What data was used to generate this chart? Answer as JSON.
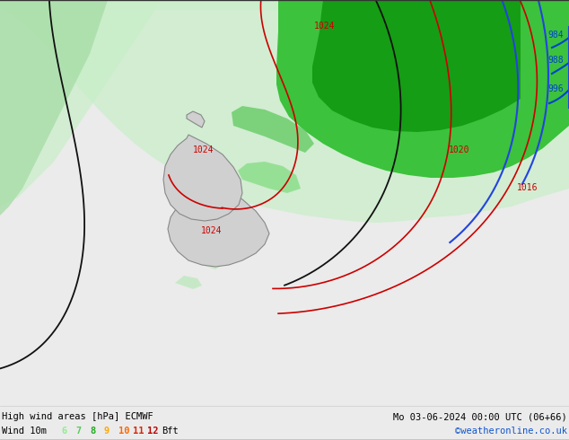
{
  "title_left": "High wind areas [hPa] ECMWF",
  "title_right": "Mo 03-06-2024 00:00 UTC (06+66)",
  "subtitle_left": "Wind 10m",
  "subtitle_right": "©weatheronline.co.uk",
  "bft_labels": [
    "6",
    "7",
    "8",
    "9",
    "10",
    "11",
    "12"
  ],
  "bft_colors": [
    "#90ee90",
    "#66cc66",
    "#33aa33",
    "#ffaa00",
    "#ff6600",
    "#ff2200",
    "#cc0000"
  ],
  "bft_light_colors": [
    "#c8f0c8",
    "#a8e0a8",
    "#88d088",
    "#ffcc88",
    "#ff9966",
    "#ff6644",
    "#ee2222"
  ],
  "background_color": "#e8e8e8",
  "fig_width": 6.34,
  "fig_height": 4.9,
  "dpi": 100
}
